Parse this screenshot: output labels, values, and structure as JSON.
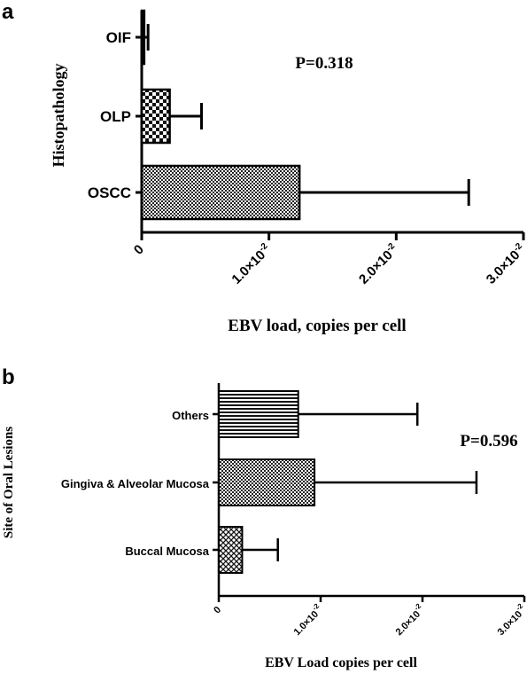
{
  "chart_data": [
    {
      "panel": "a",
      "type": "bar",
      "orientation": "horizontal",
      "categories": [
        "OIF",
        "OLP",
        "OSCC"
      ],
      "values": [
        0.0002,
        0.0022,
        0.0124
      ],
      "errors": [
        0.0003,
        0.0025,
        0.0133
      ],
      "xlabel": "EBV load, copies per cell",
      "ylabel": "Histopathology",
      "annotation": "P=0.318",
      "xlim": [
        0,
        0.03
      ],
      "ticks": [
        {
          "value": 0,
          "label": "0",
          "sup": ""
        },
        {
          "value": 0.01,
          "label": "1.0×10",
          "sup": "-2"
        },
        {
          "value": 0.02,
          "label": "2.0×10",
          "sup": "-2"
        },
        {
          "value": 0.03,
          "label": "3.0×10",
          "sup": "-2"
        }
      ],
      "patterns": [
        "solid",
        "checker",
        "dots"
      ]
    },
    {
      "panel": "b",
      "type": "bar",
      "orientation": "horizontal",
      "categories": [
        "Others",
        "Gingiva & Alveolar Mucosa",
        "Buccal Mucosa"
      ],
      "values": [
        0.0078,
        0.0094,
        0.0023
      ],
      "errors": [
        0.0117,
        0.0159,
        0.0035
      ],
      "xlabel": "EBV Load copies per cell",
      "ylabel": "Site of Oral Lesions",
      "annotation": "P=0.596",
      "xlim": [
        0,
        0.03
      ],
      "ticks": [
        {
          "value": 0,
          "label": "0",
          "sup": ""
        },
        {
          "value": 0.01,
          "label": "1.0×10",
          "sup": "-2"
        },
        {
          "value": 0.02,
          "label": "2.0×10",
          "sup": "-2"
        },
        {
          "value": 0.03,
          "label": "3.0×10",
          "sup": "-2"
        }
      ],
      "patterns": [
        "hlines",
        "dots",
        "crosshatch"
      ]
    }
  ]
}
